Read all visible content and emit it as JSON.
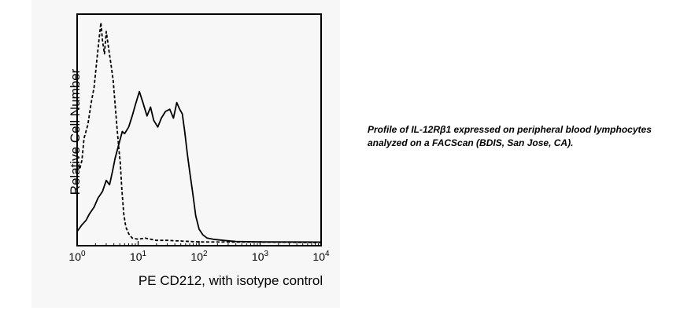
{
  "chart_data": {
    "type": "area",
    "title": "",
    "xlabel": "PE CD212, with isotype control",
    "ylabel": "Relative Cell Number",
    "x_scale": "log",
    "xlim": [
      1,
      10000
    ],
    "ylim": [
      0,
      1
    ],
    "x_ticks": [
      {
        "value": 1,
        "base": "10",
        "exp": "0"
      },
      {
        "value": 10,
        "base": "10",
        "exp": "1"
      },
      {
        "value": 100,
        "base": "10",
        "exp": "2"
      },
      {
        "value": 1000,
        "base": "10",
        "exp": "3"
      },
      {
        "value": 10000,
        "base": "10",
        "exp": "4"
      }
    ],
    "grid": false,
    "legend": "none",
    "series": [
      {
        "style": "dashed",
        "color": "#000000",
        "points": [
          [
            1.0,
            0.37
          ],
          [
            1.1,
            0.33
          ],
          [
            1.2,
            0.37
          ],
          [
            1.3,
            0.47
          ],
          [
            1.5,
            0.53
          ],
          [
            1.7,
            0.63
          ],
          [
            1.9,
            0.7
          ],
          [
            2.1,
            0.82
          ],
          [
            2.3,
            0.92
          ],
          [
            2.45,
            0.99
          ],
          [
            2.6,
            0.91
          ],
          [
            2.8,
            0.85
          ],
          [
            3.0,
            0.95
          ],
          [
            3.3,
            0.87
          ],
          [
            3.6,
            0.8
          ],
          [
            3.9,
            0.73
          ],
          [
            4.2,
            0.62
          ],
          [
            4.5,
            0.52
          ],
          [
            4.8,
            0.43
          ],
          [
            5.1,
            0.36
          ],
          [
            5.4,
            0.24
          ],
          [
            5.8,
            0.13
          ],
          [
            6.3,
            0.07
          ],
          [
            7.0,
            0.04
          ],
          [
            8.0,
            0.02
          ],
          [
            10,
            0.015
          ],
          [
            13,
            0.02
          ],
          [
            20,
            0.01
          ],
          [
            30,
            0.01
          ],
          [
            100,
            0.003
          ],
          [
            1000,
            0.002
          ],
          [
            10000,
            0.0
          ]
        ]
      },
      {
        "style": "solid",
        "color": "#000000",
        "points": [
          [
            1.0,
            0.05
          ],
          [
            1.2,
            0.08
          ],
          [
            1.4,
            0.1
          ],
          [
            1.6,
            0.13
          ],
          [
            1.9,
            0.16
          ],
          [
            2.2,
            0.2
          ],
          [
            2.6,
            0.23
          ],
          [
            3.0,
            0.28
          ],
          [
            3.4,
            0.26
          ],
          [
            3.8,
            0.32
          ],
          [
            4.2,
            0.38
          ],
          [
            4.8,
            0.44
          ],
          [
            5.5,
            0.5
          ],
          [
            6.0,
            0.49
          ],
          [
            7.0,
            0.52
          ],
          [
            8.0,
            0.57
          ],
          [
            9.0,
            0.62
          ],
          [
            10.5,
            0.68
          ],
          [
            12,
            0.63
          ],
          [
            14,
            0.57
          ],
          [
            16,
            0.61
          ],
          [
            18,
            0.55
          ],
          [
            21,
            0.52
          ],
          [
            24,
            0.56
          ],
          [
            28,
            0.59
          ],
          [
            33,
            0.6
          ],
          [
            38,
            0.56
          ],
          [
            43,
            0.63
          ],
          [
            48,
            0.6
          ],
          [
            53,
            0.58
          ],
          [
            58,
            0.5
          ],
          [
            64,
            0.4
          ],
          [
            70,
            0.32
          ],
          [
            78,
            0.23
          ],
          [
            88,
            0.12
          ],
          [
            100,
            0.06
          ],
          [
            115,
            0.035
          ],
          [
            135,
            0.02
          ],
          [
            170,
            0.015
          ],
          [
            250,
            0.01
          ],
          [
            400,
            0.005
          ],
          [
            1000,
            0.003
          ],
          [
            10000,
            0.002
          ]
        ]
      }
    ]
  },
  "caption": "Profile of IL-12Rβ1 expressed on peripheral blood lymphocytes analyzed on a FACScan (BDIS, San Jose, CA)."
}
